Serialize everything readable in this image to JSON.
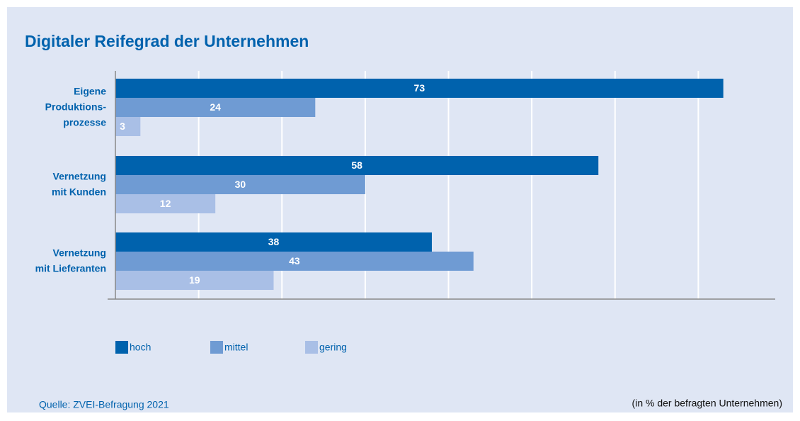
{
  "chart_data": {
    "type": "barh",
    "title": "Digitaler Reifegrad der Unternehmen",
    "categories": [
      "Eigene\nProduktions-\nprozesse",
      "Vernetzung\nmit Kunden",
      "Vernetzung\nmit Lieferanten"
    ],
    "series": [
      {
        "name": "hoch",
        "color": "#0062ad",
        "values": [
          73,
          58,
          38
        ]
      },
      {
        "name": "mittel",
        "color": "#6f9bd3",
        "values": [
          24,
          30,
          43
        ]
      },
      {
        "name": "gering",
        "color": "#a9bfe6",
        "values": [
          3,
          12,
          19
        ]
      }
    ],
    "xlim": [
      0,
      80
    ],
    "xticks": [
      10,
      20,
      30,
      40,
      50,
      60,
      70
    ],
    "grid": true,
    "source": "Quelle: ZVEI-Befragung 2021",
    "note": "(in % der befragten Unternehmen)"
  }
}
